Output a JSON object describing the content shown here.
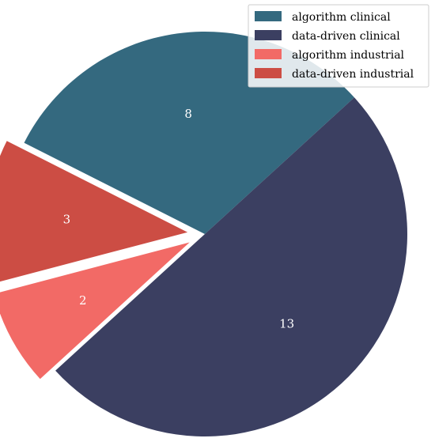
{
  "chart_data": {
    "type": "pie",
    "slices": [
      {
        "label": "algorithm clinical",
        "value": 8,
        "color": "#34697F",
        "exploded": false
      },
      {
        "label": "data-driven clinical",
        "value": 13,
        "color": "#3B3F61",
        "exploded": false
      },
      {
        "label": "algorithm industrial",
        "value": 2,
        "color": "#F26A66",
        "exploded": true
      },
      {
        "label": "data-driven industrial",
        "value": 3,
        "color": "#CC4D44",
        "exploded": true
      }
    ],
    "legend": {
      "placement": "top-right",
      "entries": [
        "algorithm clinical",
        "data-driven clinical",
        "algorithm industrial",
        "data-driven industrial"
      ]
    }
  }
}
